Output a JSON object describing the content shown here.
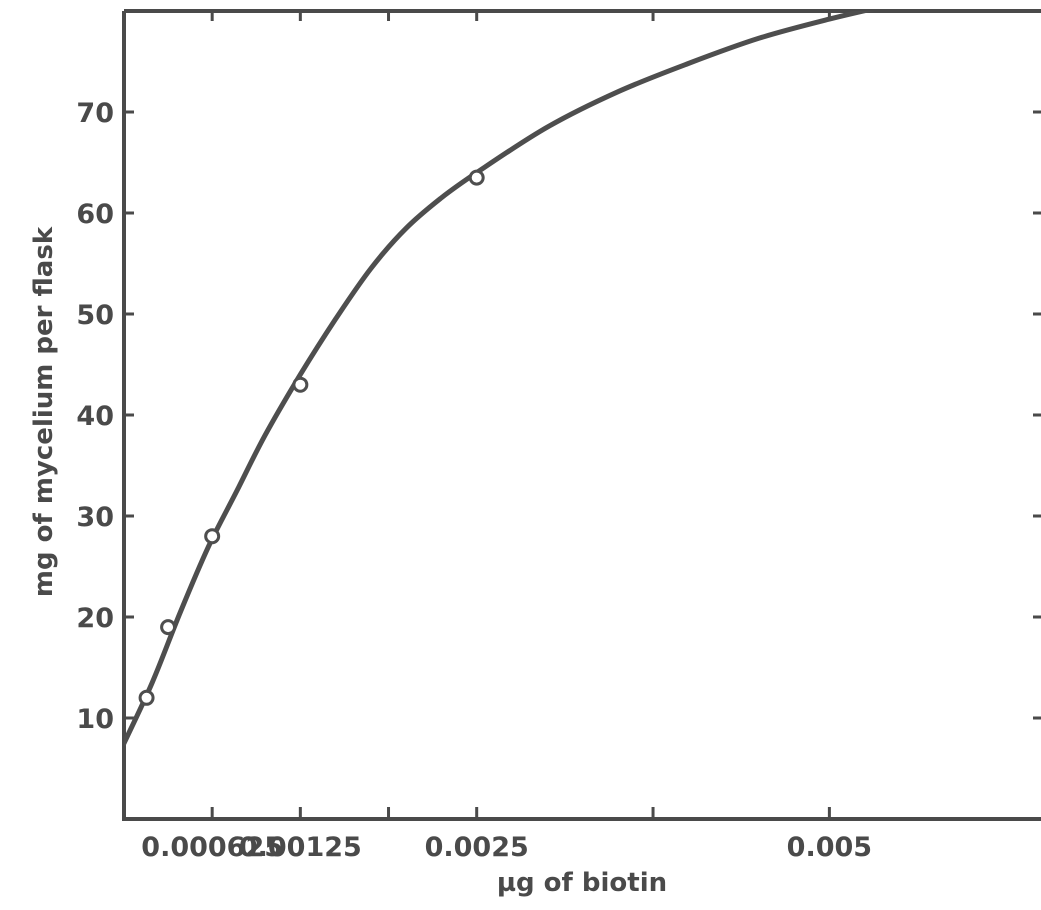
{
  "chart_data": {
    "type": "line",
    "xlabel": "µg of biotin",
    "ylabel": "mg of mycelium per flask",
    "x_tick_labels": [
      {
        "value": 0.000625,
        "label": "0.000625"
      },
      {
        "value": 0.00125,
        "label": "0.00125"
      },
      {
        "value": 0.0025,
        "label": "0.0025"
      },
      {
        "value": 0.005,
        "label": "0.005"
      }
    ],
    "y_tick_labels": [
      10,
      20,
      30,
      40,
      50,
      60,
      70
    ],
    "xlim": [
      0,
      0.0065
    ],
    "ylim": [
      0,
      80
    ],
    "grid": false,
    "series": [
      {
        "points": [
          {
            "x": 0.00016,
            "y": 12
          },
          {
            "x": 0.0003125,
            "y": 19
          },
          {
            "x": 0.000625,
            "y": 28
          },
          {
            "x": 0.00125,
            "y": 43
          },
          {
            "x": 0.0025,
            "y": 63.5
          }
        ],
        "fitted_curve": [
          {
            "x": 0.0,
            "y": 7.5
          },
          {
            "x": 0.0002,
            "y": 13.5
          },
          {
            "x": 0.0004,
            "y": 20.5
          },
          {
            "x": 0.0006,
            "y": 27
          },
          {
            "x": 0.0008,
            "y": 32.5
          },
          {
            "x": 0.001,
            "y": 38
          },
          {
            "x": 0.00125,
            "y": 44
          },
          {
            "x": 0.0015,
            "y": 49.5
          },
          {
            "x": 0.00175,
            "y": 54.5
          },
          {
            "x": 0.002,
            "y": 58.5
          },
          {
            "x": 0.00225,
            "y": 61.5
          },
          {
            "x": 0.0025,
            "y": 64
          },
          {
            "x": 0.003,
            "y": 68.5
          },
          {
            "x": 0.0035,
            "y": 72
          },
          {
            "x": 0.004,
            "y": 74.8
          },
          {
            "x": 0.0045,
            "y": 77.3
          },
          {
            "x": 0.005,
            "y": 79.2
          },
          {
            "x": 0.0054,
            "y": 80.5
          }
        ]
      }
    ]
  }
}
